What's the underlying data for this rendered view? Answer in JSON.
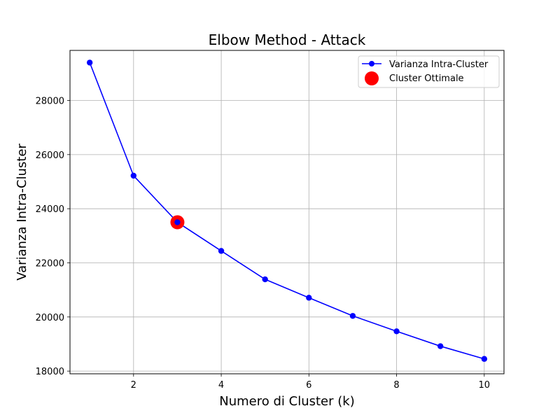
{
  "chart_data": {
    "type": "line",
    "title": "Elbow Method - Attack",
    "xlabel": "Numero di Cluster (k)",
    "ylabel": "Varianza Intra-Cluster",
    "xlim": [
      0.55,
      10.45
    ],
    "ylim": [
      17900,
      29850
    ],
    "xticks": [
      2,
      4,
      6,
      8,
      10
    ],
    "yticks": [
      18000,
      20000,
      22000,
      24000,
      26000,
      28000
    ],
    "grid": true,
    "legend_position": "top-right",
    "x": [
      1,
      2,
      3,
      4,
      5,
      6,
      7,
      8,
      9,
      10
    ],
    "series": [
      {
        "name": "Varianza Intra-Cluster",
        "color": "#0000ff",
        "marker": "circle",
        "values": [
          29400,
          25220,
          23500,
          22440,
          21390,
          20710,
          20040,
          19470,
          18920,
          18450
        ]
      }
    ],
    "highlight": {
      "name": "Cluster Ottimale",
      "color": "#ff0000",
      "x": 3,
      "y": 23500
    }
  }
}
